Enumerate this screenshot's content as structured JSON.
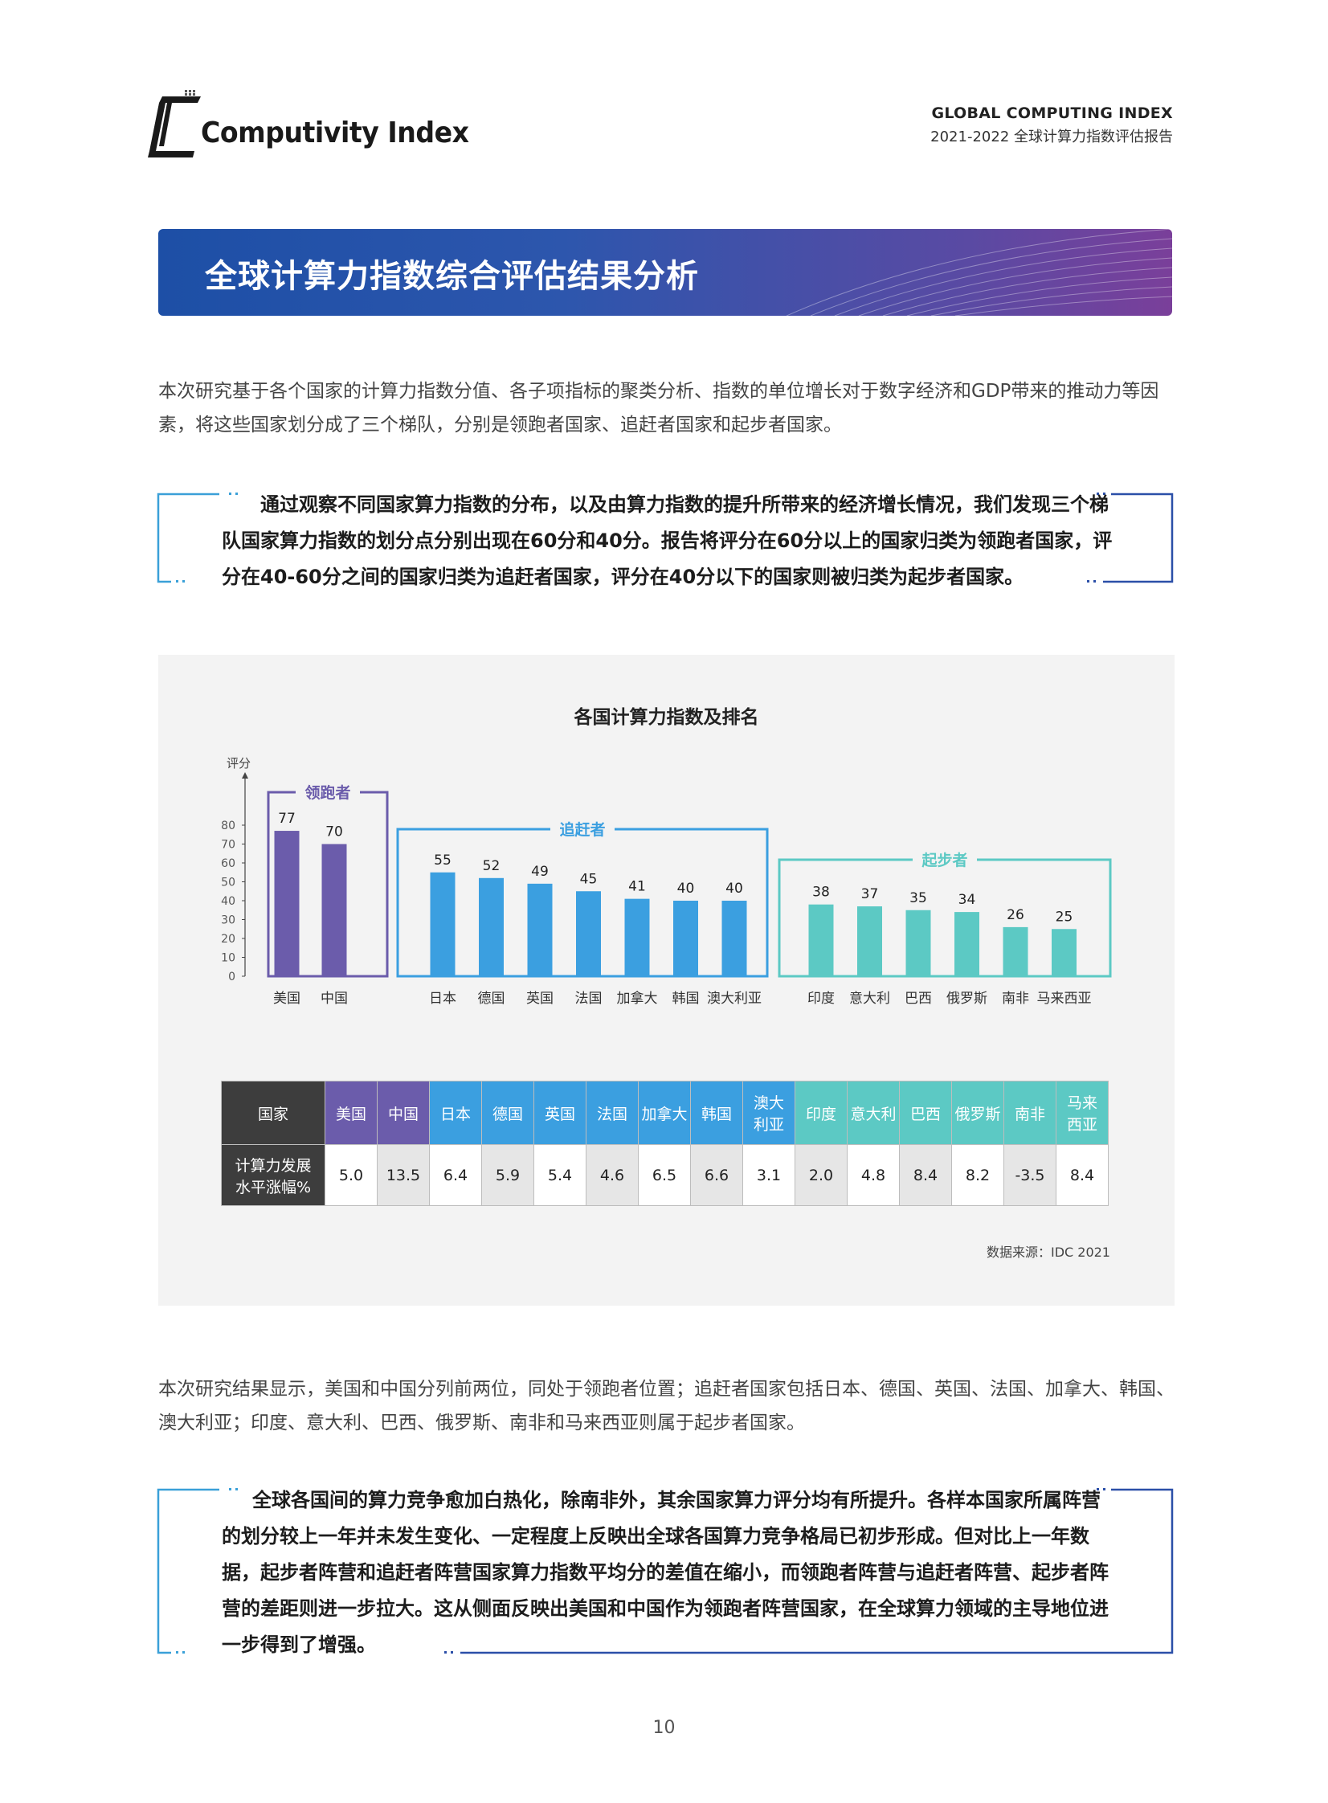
{
  "header": {
    "logo_text": "Computivity Index",
    "right_title": "GLOBAL COMPUTING INDEX",
    "right_subtitle": "2021-2022 全球计算力指数评估报告"
  },
  "section_title": "全球计算力指数综合评估结果分析",
  "intro_text": "本次研究基于各个国家的计算力指数分值、各子项指标的聚类分析、指数的单位增长对于数字经济和GDP带来的推动力等因素，将这些国家划分成了三个梯队，分别是领跑者国家、追赶者国家和起步者国家。",
  "callout1_text": "通过观察不同国家算力指数的分布，以及由算力指数的提升所带来的经济增长情况，我们发现三个梯队国家算力指数的划分点分别出现在60分和40分。报告将评分在60分以上的国家归类为领跑者国家，评分在40-60分之间的国家归类为追赶者国家，评分在40分以下的国家则被归类为起步者国家。",
  "chart_data": {
    "type": "bar",
    "title": "各国计算力指数及排名",
    "ylabel": "评分",
    "ylim": [
      0,
      80
    ],
    "yticks": [
      0,
      10,
      20,
      30,
      40,
      50,
      60,
      70,
      80
    ],
    "groups": [
      {
        "name": "领跑者",
        "color": "#6b5cab",
        "categories": [
          "美国",
          "中国"
        ],
        "values": [
          77,
          70
        ]
      },
      {
        "name": "追赶者",
        "color": "#3b9fe0",
        "categories": [
          "日本",
          "德国",
          "英国",
          "法国",
          "加拿大",
          "韩国",
          "澳大利亚"
        ],
        "values": [
          55,
          52,
          49,
          45,
          41,
          40,
          40
        ]
      },
      {
        "name": "起步者",
        "color": "#5cc9c4",
        "categories": [
          "印度",
          "意大利",
          "巴西",
          "俄罗斯",
          "南非",
          "马来西亚"
        ],
        "values": [
          38,
          37,
          35,
          34,
          26,
          25
        ]
      }
    ]
  },
  "table": {
    "row_header_country": "国家",
    "row_header_growth": "计算力发展\n水平涨幅%",
    "countries": [
      "美国",
      "中国",
      "日本",
      "德国",
      "英国",
      "法国",
      "加拿大",
      "韩国",
      "澳大\n利亚",
      "印度",
      "意大利",
      "巴西",
      "俄罗斯",
      "南非",
      "马来\n西亚"
    ],
    "growth": [
      "5.0",
      "13.5",
      "6.4",
      "5.9",
      "5.4",
      "4.6",
      "6.5",
      "6.6",
      "3.1",
      "2.0",
      "4.8",
      "8.4",
      "8.2",
      "-3.5",
      "8.4"
    ],
    "header_colors": [
      "#6b5cab",
      "#6b5cab",
      "#3b9fe0",
      "#3b9fe0",
      "#3b9fe0",
      "#3b9fe0",
      "#3b9fe0",
      "#3b9fe0",
      "#3b9fe0",
      "#5cc9c4",
      "#5cc9c4",
      "#5cc9c4",
      "#5cc9c4",
      "#5cc9c4",
      "#5cc9c4"
    ],
    "label_color": "#3d3d3d"
  },
  "source": "数据来源：IDC 2021",
  "result_text": "本次研究结果显示，美国和中国分列前两位，同处于领跑者位置；追赶者国家包括日本、德国、英国、法国、加拿大、韩国、澳大利亚；印度、意大利、巴西、俄罗斯、南非和马来西亚则属于起步者国家。",
  "callout2_text": "全球各国间的算力竞争愈加白热化，除南非外，其余国家算力评分均有所提升。各样本国家所属阵营的划分较上一年并未发生变化、一定程度上反映出全球各国算力竞争格局已初步形成。但对比上一年数据，起步者阵营和追赶者阵营国家算力指数平均分的差值在缩小，而领跑者阵营与追赶者阵营、起步者阵营的差距则进一步拉大。这从侧面反映出美国和中国作为领跑者阵营国家，在全球算力领域的主导地位进一步得到了增强。",
  "page_number": "10"
}
